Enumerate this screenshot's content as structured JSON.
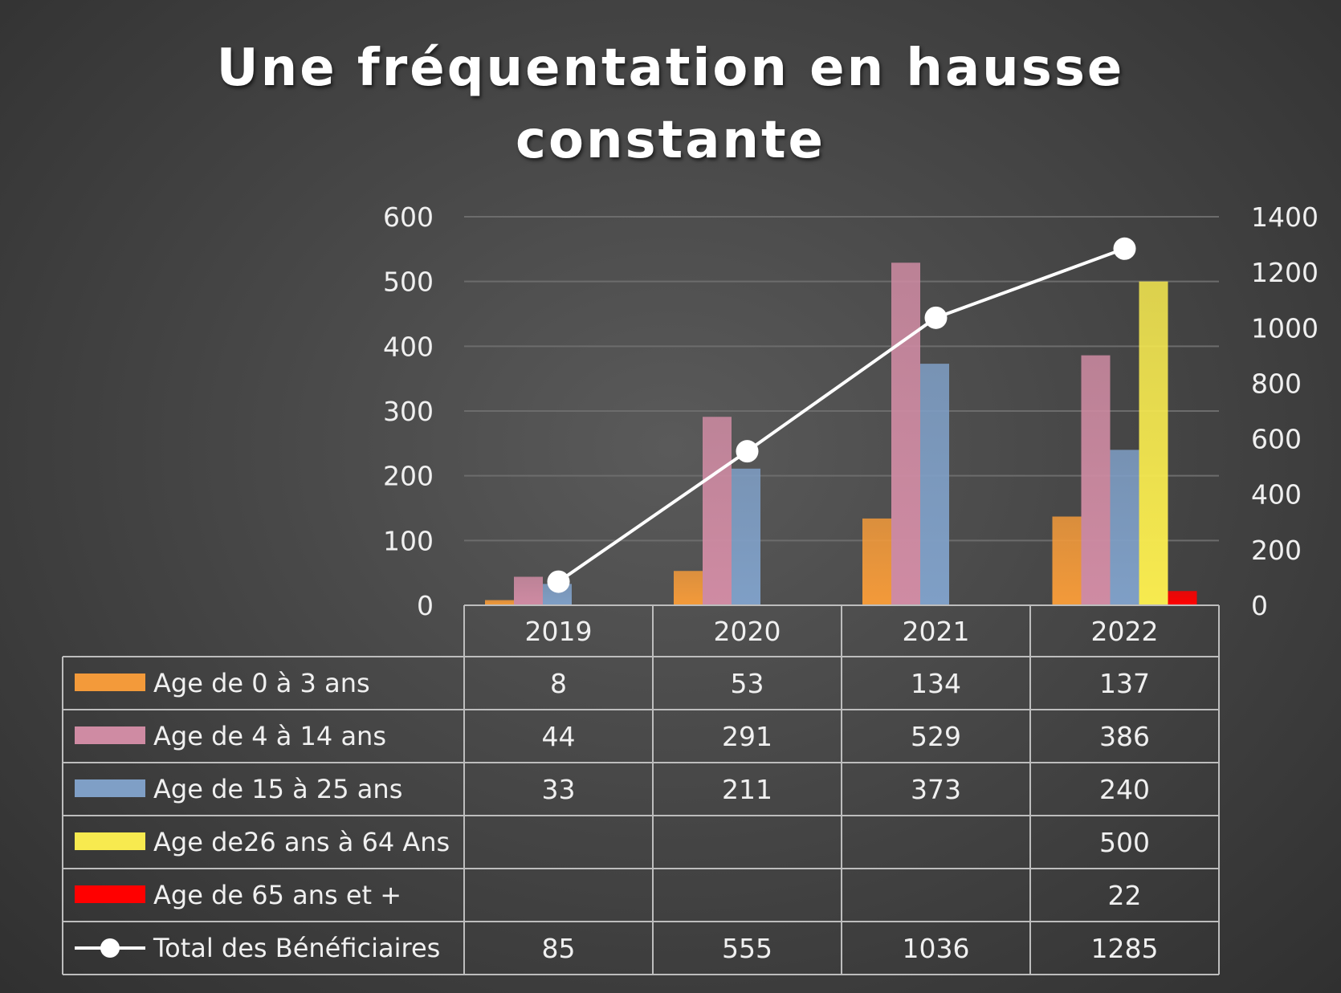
{
  "chart_data": {
    "type": "bar",
    "title": "Une fréquentation en hausse constante",
    "title_lines": [
      "Une fréquentation en hausse",
      "constante"
    ],
    "categories": [
      "2019",
      "2020",
      "2021",
      "2022"
    ],
    "primary_axis": {
      "min": 0,
      "max": 600,
      "ticks": [
        "0",
        "100",
        "200",
        "300",
        "400",
        "500",
        "600"
      ]
    },
    "secondary_axis": {
      "min": 0,
      "max": 1400,
      "ticks": [
        "0",
        "200",
        "400",
        "600",
        "800",
        "1000",
        "1200",
        "1400"
      ]
    },
    "grid": true,
    "legend_placement": "data table",
    "series": [
      {
        "name": "Age de 0 à 3 ans",
        "kind": "bar",
        "color": "#f39a3a",
        "values": [
          8,
          53,
          134,
          137
        ],
        "labels": [
          "8",
          "53",
          "134",
          "137"
        ]
      },
      {
        "name": "Age de 4 à 14 ans",
        "kind": "bar",
        "color": "#cf8ba3",
        "values": [
          44,
          291,
          529,
          386
        ],
        "labels": [
          "44",
          "291",
          "529",
          "386"
        ]
      },
      {
        "name": "Age de 15 à 25 ans",
        "kind": "bar",
        "color": "#7f9fc6",
        "values": [
          33,
          211,
          373,
          240
        ],
        "labels": [
          "33",
          "211",
          "373",
          "240"
        ]
      },
      {
        "name": "Age de26 ans à 64 Ans",
        "kind": "bar",
        "color": "#f7ea4f",
        "values": [
          null,
          null,
          null,
          500
        ],
        "labels": [
          "",
          "",
          "",
          "500"
        ]
      },
      {
        "name": "Age de 65 ans et +",
        "kind": "bar",
        "color": "#ff0000",
        "values": [
          null,
          null,
          null,
          22
        ],
        "labels": [
          "",
          "",
          "",
          "22"
        ]
      },
      {
        "name": "Total des Bénéficiaires",
        "kind": "line",
        "axis": "secondary",
        "color": "#ffffff",
        "values": [
          85,
          555,
          1036,
          1285
        ],
        "labels": [
          "85",
          "555",
          "1036",
          "1285"
        ]
      }
    ]
  }
}
